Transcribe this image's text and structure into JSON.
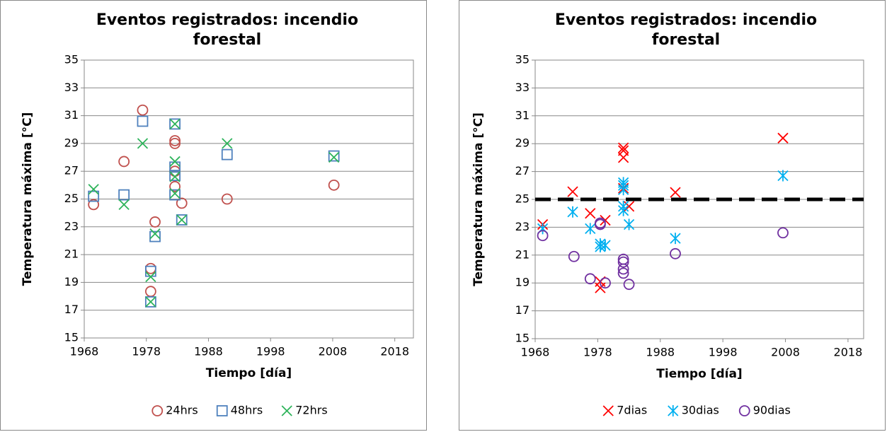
{
  "chart_data": [
    {
      "type": "scatter",
      "title": "Eventos registrados: incendio forestal",
      "x_label": "Tiempo [día]",
      "y_label": "Temperatura máxima [°C]",
      "xlim": [
        1968,
        2021
      ],
      "xticks": [
        1968,
        1978,
        1988,
        1998,
        2008,
        2018
      ],
      "ylim": [
        15,
        35
      ],
      "yticks": [
        15,
        17,
        19,
        21,
        23,
        25,
        27,
        29,
        31,
        33,
        35
      ],
      "grid": true,
      "legend": "bottom",
      "series": [
        {
          "name": "24hrs",
          "color": "#c0504d",
          "marker": "circle",
          "x": [
            1969.5,
            1974.4,
            1977.4,
            1978.7,
            1978.7,
            1979.4,
            1982.6,
            1982.6,
            1982.6,
            1982.6,
            1983.7,
            1991,
            2008.2
          ],
          "values": [
            24.6,
            27.7,
            31.4,
            20.0,
            18.35,
            23.35,
            29.2,
            29.0,
            27.0,
            25.9,
            24.7,
            25.0,
            26.0
          ]
        },
        {
          "name": "48hrs",
          "color": "#4f81bd",
          "marker": "square",
          "x": [
            1969.5,
            1974.4,
            1977.4,
            1978.7,
            1978.7,
            1979.4,
            1982.6,
            1982.6,
            1982.6,
            1982.6,
            1983.7,
            1991,
            2008.2
          ],
          "values": [
            25.2,
            25.3,
            30.6,
            19.8,
            17.6,
            22.3,
            30.4,
            27.3,
            26.7,
            25.3,
            23.5,
            28.2,
            28.1
          ]
        },
        {
          "name": "72hrs",
          "color": "#2db35a",
          "marker": "x",
          "x": [
            1969.5,
            1974.4,
            1977.4,
            1978.7,
            1978.7,
            1979.4,
            1982.6,
            1982.6,
            1982.6,
            1982.6,
            1983.7,
            1991,
            2008.2
          ],
          "values": [
            25.7,
            24.6,
            29.0,
            19.4,
            17.6,
            22.5,
            30.4,
            27.7,
            26.6,
            25.4,
            23.5,
            29.0,
            28.0
          ]
        }
      ]
    },
    {
      "type": "scatter",
      "title": "Eventos registrados: incendio forestal",
      "x_label": "Tiempo [día]",
      "y_label": "Temperatura máxima [°C]",
      "xlim": [
        1968,
        2020.5
      ],
      "xticks": [
        1968,
        1978,
        1988,
        1998,
        2008,
        2018
      ],
      "ylim": [
        15,
        35
      ],
      "yticks": [
        15,
        17,
        19,
        21,
        23,
        25,
        27,
        29,
        31,
        33,
        35
      ],
      "grid": true,
      "legend": "bottom",
      "hline": 25,
      "series": [
        {
          "name": "7dias",
          "color": "#ff0000",
          "marker": "x",
          "x": [
            1969.2,
            1974,
            1976.8,
            1978.4,
            1978.4,
            1979.2,
            1982.1,
            1982.1,
            1982.1,
            1982.1,
            1983,
            1990.4,
            2007.6
          ],
          "values": [
            23.2,
            25.55,
            24.0,
            19.1,
            18.65,
            23.5,
            28.7,
            28.5,
            28.0,
            25.8,
            24.5,
            25.5,
            29.4
          ]
        },
        {
          "name": "30dias",
          "color": "#00b0f0",
          "marker": "asterisk",
          "x": [
            1969.2,
            1974,
            1976.8,
            1978.4,
            1978.4,
            1979.2,
            1982.1,
            1982.1,
            1982.1,
            1982.1,
            1982.1,
            1983,
            1990.4,
            2007.6
          ],
          "values": [
            22.9,
            24.1,
            22.9,
            21.8,
            21.6,
            21.7,
            26.2,
            26.0,
            25.7,
            24.5,
            24.2,
            23.2,
            22.2,
            26.7
          ]
        },
        {
          "name": "90dias",
          "color": "#7030a0",
          "marker": "circle",
          "x": [
            1969.2,
            1974.2,
            1976.8,
            1978.4,
            1978.4,
            1979.2,
            1982.1,
            1982.1,
            1982.1,
            1982.1,
            1983,
            1990.4,
            2007.6
          ],
          "values": [
            22.4,
            20.9,
            19.3,
            23.3,
            23.2,
            19.0,
            20.7,
            20.5,
            20.0,
            19.7,
            18.9,
            21.1,
            22.6
          ]
        }
      ]
    }
  ]
}
